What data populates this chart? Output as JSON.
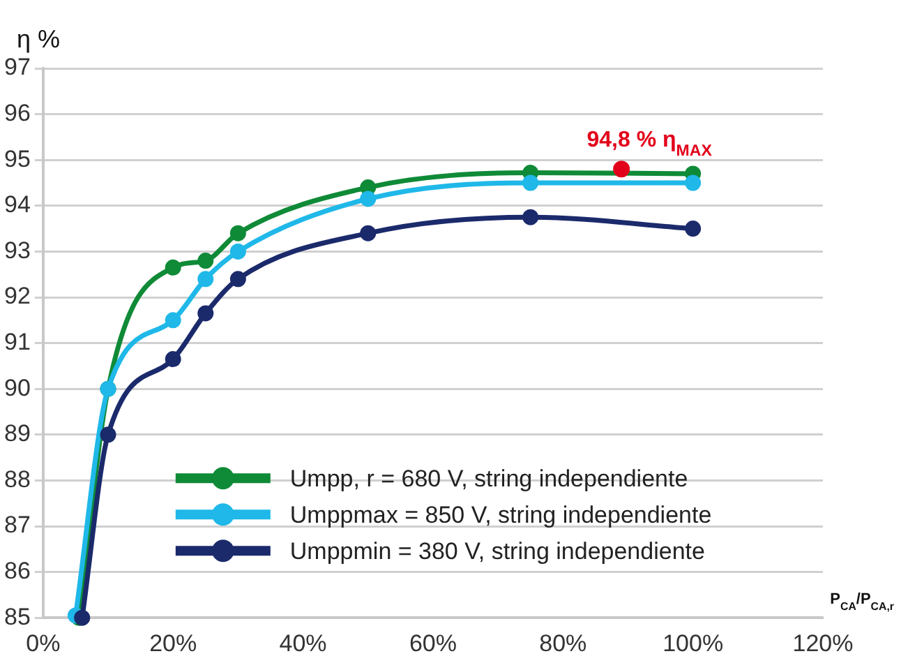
{
  "chart_data": {
    "type": "line",
    "ylabel": "η %",
    "xlabel": "P$_{CA}$/P$_{CA,r}$",
    "xlim": [
      0,
      120
    ],
    "xticks": [
      {
        "value": 0,
        "label": "0%"
      },
      {
        "value": 20,
        "label": "20%"
      },
      {
        "value": 40,
        "label": "40%"
      },
      {
        "value": 60,
        "label": "60%"
      },
      {
        "value": 80,
        "label": "80%"
      },
      {
        "value": 100,
        "label": "100%"
      },
      {
        "value": 120,
        "label": "120%"
      }
    ],
    "ylim": [
      85,
      97
    ],
    "yticks": [
      85,
      86,
      87,
      88,
      89,
      90,
      91,
      92,
      93,
      94,
      95,
      96,
      97
    ],
    "grid": "y",
    "legend": "bottom right",
    "marker": "circle",
    "line_style": "solid",
    "series": [
      {
        "name": "Umpp, r = 680 V, string independiente",
        "color": "#0f8a37",
        "x": [
          5.5,
          10,
          20,
          25,
          30,
          50,
          75,
          100
        ],
        "values": [
          85,
          90.0,
          92.65,
          92.8,
          93.4,
          94.4,
          94.72,
          94.7
        ]
      },
      {
        "name": "Umppmax = 850 V, string independiente",
        "color": "#1fb8e8",
        "x": [
          5,
          10,
          20,
          25,
          30,
          50,
          75,
          100
        ],
        "values": [
          85.05,
          90.0,
          91.5,
          92.4,
          93.0,
          94.15,
          94.5,
          94.5
        ]
      },
      {
        "name": "Umppmin = 380 V, string independiente",
        "color": "#1b2a6b",
        "x": [
          6,
          10,
          20,
          25,
          30,
          50,
          75,
          100
        ],
        "values": [
          85,
          89.0,
          90.65,
          91.65,
          92.4,
          93.4,
          93.75,
          93.5
        ]
      },
      {
        "type": "scatter",
        "color": "#e2001a",
        "x": [
          89
        ],
        "values": [
          94.8
        ]
      }
    ],
    "annotations": [
      {
        "text": "94,8 % η$_{MAX}$",
        "x": 89,
        "y": 94.8
      }
    ]
  }
}
